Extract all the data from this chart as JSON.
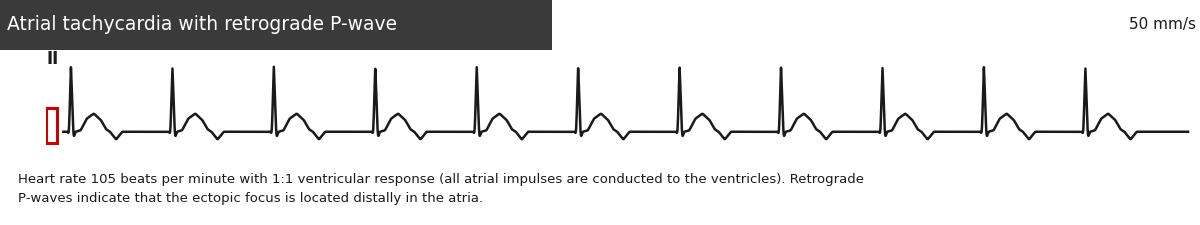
{
  "title": "Atrial tachycardia with retrograde P-wave",
  "title_bg": "#3a3a3a",
  "title_color": "#ffffff",
  "speed_label": "50 mm/s",
  "lead_label": "II",
  "caption": "Heart rate 105 beats per minute with 1:1 ventricular response (all atrial impulses are conducted to the ventricles). Retrograde\nP-waves indicate that the ectopic focus is located distally in the atria.",
  "bg_color": "#ffffff",
  "ecg_color": "#1a1a1a",
  "red_box_color": "#cc0000",
  "line_width": 1.8,
  "num_beats": 11,
  "heart_rate": 105
}
